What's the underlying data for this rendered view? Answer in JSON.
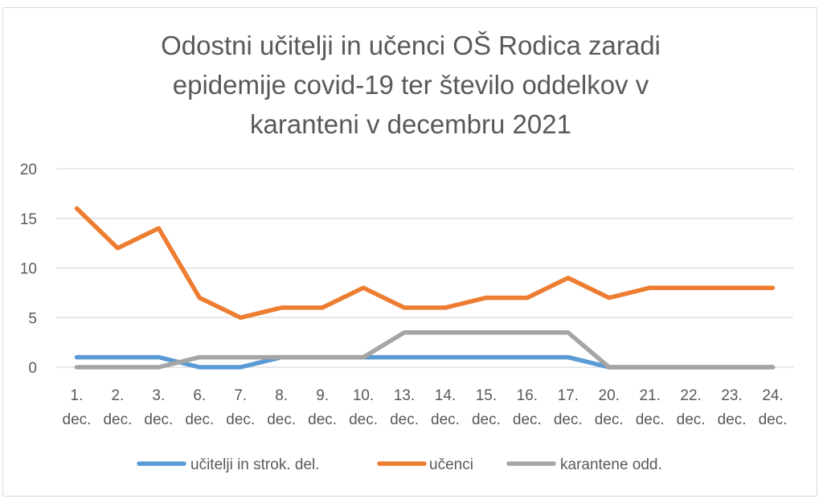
{
  "chart_data": {
    "type": "line",
    "title_lines": [
      "Odostni učitelji in učenci OŠ Rodica zaradi",
      "epidemije covid-19 ter število oddelkov v",
      "karanteni v decembru 2021"
    ],
    "categories": [
      [
        "1.",
        "dec."
      ],
      [
        "2.",
        "dec."
      ],
      [
        "3.",
        "dec."
      ],
      [
        "6.",
        "dec."
      ],
      [
        "7.",
        "dec."
      ],
      [
        "8.",
        "dec."
      ],
      [
        "9.",
        "dec."
      ],
      [
        "10.",
        "dec."
      ],
      [
        "13.",
        "dec."
      ],
      [
        "14.",
        "dec."
      ],
      [
        "15.",
        "dec."
      ],
      [
        "16.",
        "dec."
      ],
      [
        "17.",
        "dec."
      ],
      [
        "20.",
        "dec."
      ],
      [
        "21.",
        "dec."
      ],
      [
        "22.",
        "dec."
      ],
      [
        "23.",
        "dec."
      ],
      [
        "24.",
        "dec."
      ]
    ],
    "ylim": [
      0,
      20
    ],
    "yticks": [
      "0",
      "5",
      "10",
      "15",
      "20"
    ],
    "grid": true,
    "legend_position": "bottom",
    "series": [
      {
        "name": "učitelji in strok. del.",
        "color": "#5b9bd5",
        "values": [
          1,
          1,
          1,
          0,
          0,
          1,
          1,
          1,
          1,
          1,
          1,
          1,
          1,
          0,
          0,
          0,
          0,
          0
        ]
      },
      {
        "name": "učenci",
        "color": "#ed7d31",
        "values": [
          16,
          12,
          14,
          7,
          5,
          6,
          6,
          8,
          6,
          6,
          7,
          7,
          9,
          7,
          8,
          8,
          8,
          8
        ]
      },
      {
        "name": "karantene odd.",
        "color": "#a5a5a5",
        "values": [
          0,
          0,
          0,
          1,
          1,
          1,
          1,
          1,
          3.5,
          3.5,
          3.5,
          3.5,
          3.5,
          0,
          0,
          0,
          0,
          0
        ]
      }
    ]
  }
}
